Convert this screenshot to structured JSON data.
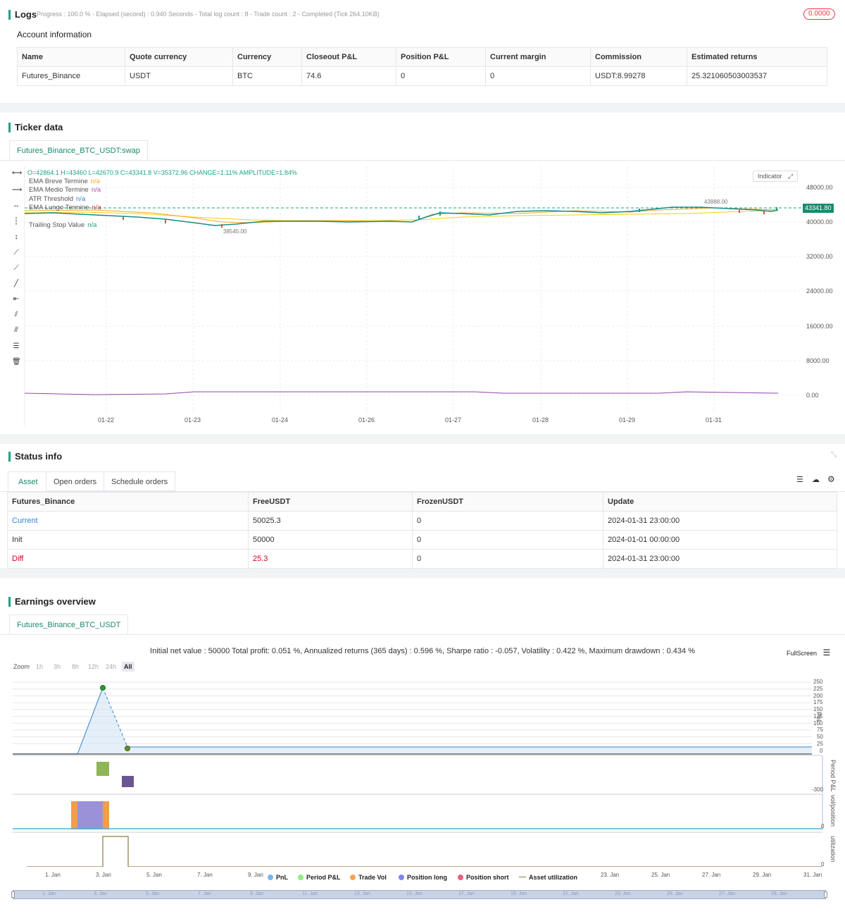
{
  "logs": {
    "title": "Logs",
    "progress": "Progress : 100.0 % - Elapsed (second) : 0.940  Seconds - Total log count : 8 - Trade count : 2 - Completed (Tick 264.10KB)",
    "badge": "0.0000"
  },
  "account": {
    "title": "Account information",
    "columns": [
      "Name",
      "Quote currency",
      "Currency",
      "Closeout P&L",
      "Position P&L",
      "Current margin",
      "Commission",
      "Estimated returns"
    ],
    "row": [
      "Futures_Binance",
      "USDT",
      "BTC",
      "74.6",
      "0",
      "0",
      "USDT:8.99278",
      "25.321060503003537"
    ]
  },
  "ticker": {
    "title": "Ticker data",
    "tab": "Futures_Binance_BTC_USDT:swap",
    "ohlc": "O=42864.1 H=43460 L=42670.9 C=43341.8 V=35372.96 CHANGE=1.11% AMPLITUDE=1.84%",
    "indicators": [
      {
        "name": "EMA Breve Termine",
        "value": "n/a",
        "color": "#f5a623"
      },
      {
        "name": "EMA Medio Termine",
        "value": "n/a",
        "color": "#9b59b6"
      },
      {
        "name": "ATR Threshold",
        "value": "n/a",
        "color": "#2e86de"
      },
      {
        "name": "EMA Lungo Termine",
        "value": "n/a",
        "color": "#c0392b"
      },
      {
        "name": "Trailing Stop Value",
        "value": "n/a",
        "color": "#1aa385"
      }
    ],
    "indicator_btn": "Indicator",
    "price_tag": "43341.80",
    "high_marker": "43888.00",
    "low_marker": "38545.00",
    "y_ticks": [
      "48000.00",
      "40000.00",
      "32000.00",
      "24000.00",
      "16000.00",
      "8000.00",
      "0.00"
    ],
    "x_ticks": [
      "01-22",
      "01-23",
      "01-24",
      "01-26",
      "01-27",
      "01-28",
      "01-29",
      "01-31"
    ]
  },
  "status": {
    "title": "Status info",
    "tabs": [
      "Asset",
      "Open orders",
      "Schedule orders"
    ],
    "columns": [
      "Futures_Binance",
      "FreeUSDT",
      "FrozenUSDT",
      "Update"
    ],
    "rows": [
      [
        "Current",
        "50025.3",
        "0",
        "2024-01-31 23:00:00"
      ],
      [
        "Init",
        "50000",
        "0",
        "2024-01-01 00:00:00"
      ],
      [
        "Diff",
        "25.3",
        "0",
        "2024-01-31 23:00:00"
      ]
    ]
  },
  "earnings": {
    "title": "Earnings overview",
    "tab": "Futures_Binance_BTC_USDT",
    "summary": "Initial net value : 50000 Total profit: 0.051 %, Annualized returns (365 days) : 0.596 %, Sharpe ratio : -0.057, Volatility : 0.422 %, Maximum drawdown : 0.434 %",
    "fullscreen": "FullScreen",
    "zoom_label": "Zoom",
    "zoom_options": [
      "1h",
      "3h",
      "8h",
      "12h",
      "24h",
      "All"
    ],
    "pnl_ticks": [
      "250",
      "225",
      "200",
      "175",
      "150",
      "125",
      "100",
      "75",
      "50",
      "25",
      "0"
    ],
    "pnl_label": "PnL",
    "period_label": "Period P&L",
    "period_tick": "-300",
    "vol_label": "vol/position",
    "vol_tick": "0",
    "util_label": "utilization",
    "util_tick": "0",
    "x_ticks": [
      "1. Jan",
      "3. Jan",
      "5. Jan",
      "7. Jan",
      "9. Jan",
      "11. Jan",
      "13. Jan",
      "15. Jan",
      "17. Jan",
      "19. Jan",
      "21. Jan",
      "23. Jan",
      "25. Jan",
      "27. Jan",
      "29. Jan",
      "31. Jan"
    ],
    "legend": [
      {
        "name": "PnL",
        "color": "#7cb5ec"
      },
      {
        "name": "Period P&L",
        "color": "#90ed7d"
      },
      {
        "name": "Trade Vol",
        "color": "#f7a35c"
      },
      {
        "name": "Position long",
        "color": "#8085e9"
      },
      {
        "name": "Position short",
        "color": "#f15c80"
      },
      {
        "name": "Asset utilization",
        "color": "#8d7a3c"
      }
    ]
  },
  "chart_data": {
    "type": "line",
    "x": [
      "1. Jan",
      "2. Jan",
      "3. Jan",
      "4. Jan",
      "5. Jan",
      "31. Jan"
    ],
    "series": [
      {
        "name": "PnL",
        "values": [
          0,
          0,
          238,
          25,
          25,
          25
        ]
      }
    ],
    "ylabel": "PnL",
    "ylim": [
      0,
      250
    ]
  }
}
